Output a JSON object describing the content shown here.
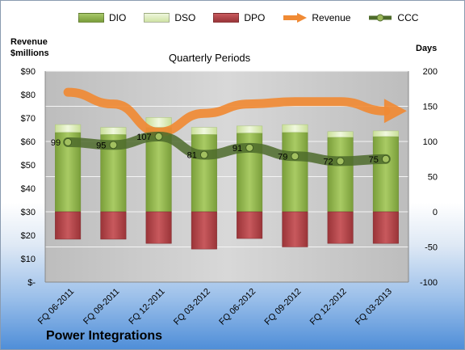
{
  "legend": {
    "dio": "DIO",
    "dso": "DSO",
    "dpo": "DPO",
    "revenue": "Revenue",
    "ccc": "CCC"
  },
  "labels": {
    "left_axis_title_line1": "Revenue",
    "left_axis_title_line2": "$millions",
    "right_axis_title": "Days",
    "plot_title": "Quarterly Periods",
    "company": "Power Integrations"
  },
  "colors": {
    "dio": "#8cb04a",
    "dso": "#d9eab3",
    "dpo": "#b0444a",
    "revenue": "#f08a34",
    "ccc": "#4e6b2b",
    "plot_bg": "#c8c8c8"
  },
  "chart_data": {
    "type": "bar",
    "title": "Quarterly Periods",
    "categories": [
      "FQ 06-2011",
      "FQ 09-2011",
      "FQ 12-2011",
      "FQ 03-2012",
      "FQ 06-2012",
      "FQ 09-2012",
      "FQ 12-2012",
      "FQ 03-2013"
    ],
    "left_axis": {
      "label": "Revenue $millions",
      "ylim": [
        0,
        90
      ],
      "ticks": [
        "$-",
        "$10",
        "$20",
        "$30",
        "$40",
        "$50",
        "$60",
        "$70",
        "$80",
        "$90"
      ]
    },
    "right_axis": {
      "label": "Days",
      "ylim": [
        -100,
        200
      ],
      "ticks": [
        "-100",
        "-50",
        "0",
        "50",
        "100",
        "150",
        "200"
      ]
    },
    "series": [
      {
        "name": "DIO",
        "axis": "right",
        "values": [
          113,
          110,
          120,
          110,
          112,
          113,
          106,
          107
        ]
      },
      {
        "name": "DSO",
        "axis": "right",
        "values": [
          11,
          10,
          14,
          10,
          10,
          11,
          8,
          8
        ]
      },
      {
        "name": "DPO",
        "axis": "right",
        "values": [
          -39,
          -39,
          -45,
          -53,
          -38,
          -50,
          -45,
          -45
        ]
      },
      {
        "name": "CCC",
        "axis": "right",
        "values": [
          99,
          95,
          107,
          81,
          91,
          79,
          72,
          75
        ]
      },
      {
        "name": "Revenue",
        "axis": "left",
        "values": [
          81,
          76,
          64,
          72,
          76,
          77,
          77,
          73
        ]
      }
    ],
    "data_labels": [
      "99",
      "95",
      "107",
      "81",
      "91",
      "79",
      "72",
      "75"
    ],
    "grid": true,
    "legend_position": "top"
  }
}
